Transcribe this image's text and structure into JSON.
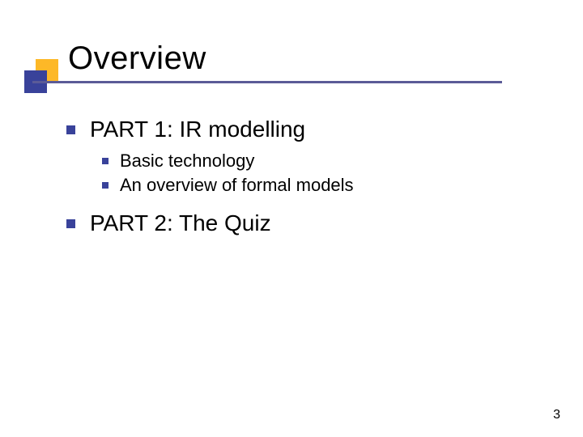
{
  "slide": {
    "title": "Overview",
    "page_number": "3"
  },
  "colors": {
    "accent_yellow": "#fdb827",
    "accent_blue": "#39429a",
    "underline": "#5b5b97",
    "bullet": "#39429a",
    "title_text": "#000000",
    "body_text": "#000000"
  },
  "bullets": [
    {
      "text": "PART 1: IR modelling",
      "children": [
        {
          "text": "Basic technology"
        },
        {
          "text": "An overview of formal models"
        }
      ]
    },
    {
      "text": "PART 2: The Quiz",
      "children": []
    }
  ]
}
